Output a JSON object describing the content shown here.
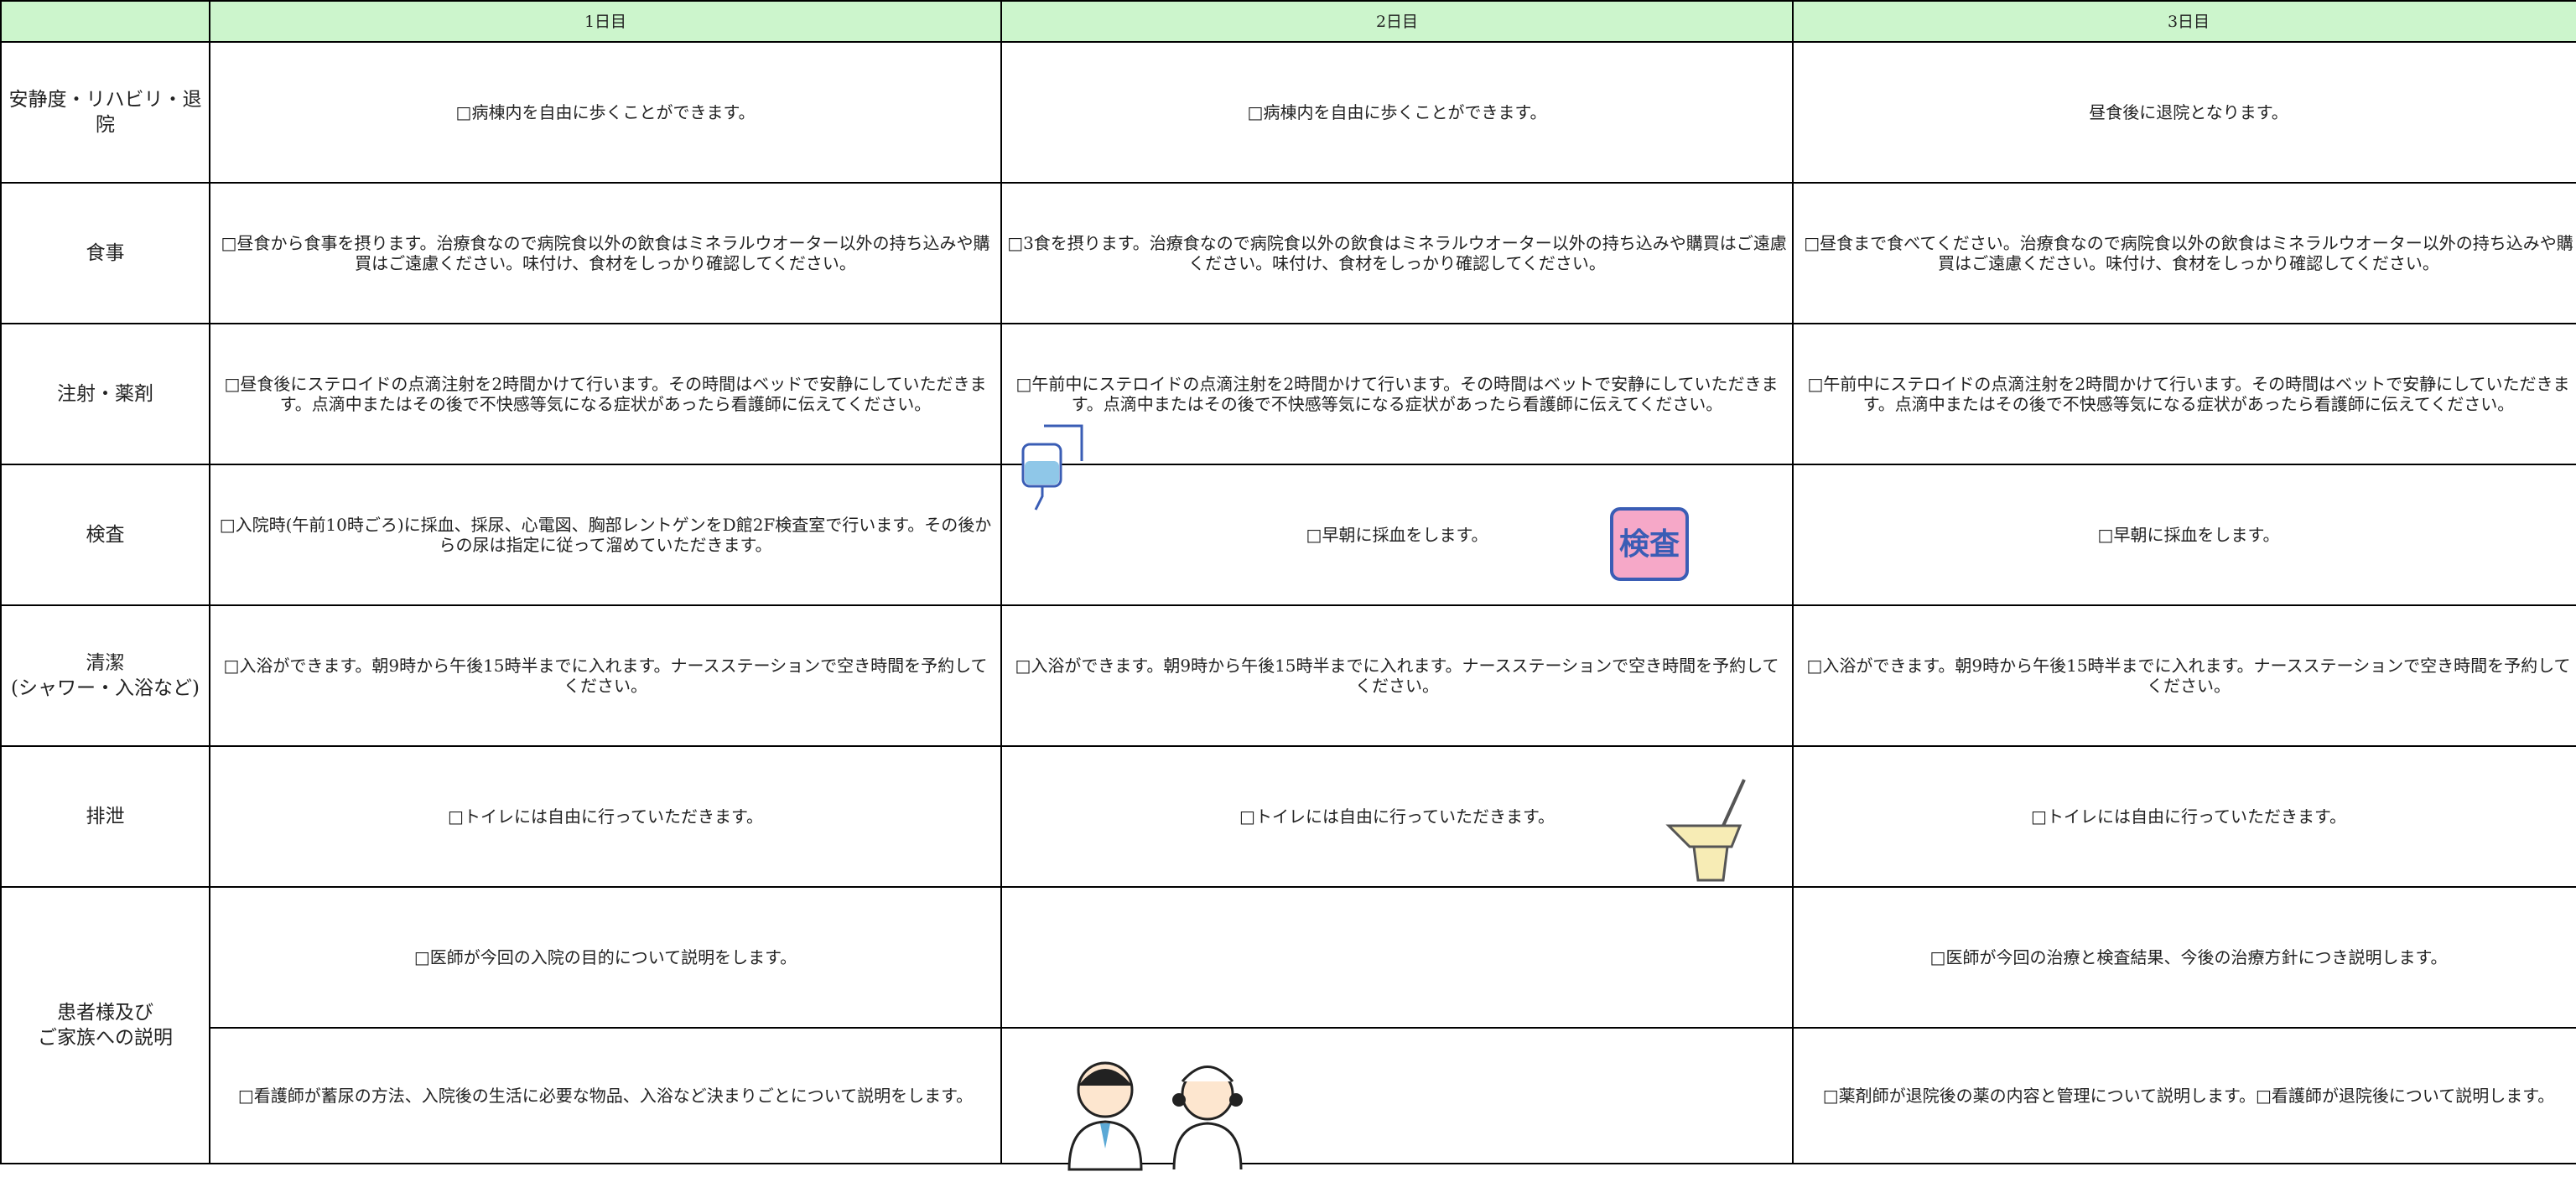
{
  "header": [
    "1日目",
    "2日目",
    "3日目"
  ],
  "rows": [
    {
      "label": "安静度・リハビリ・退院",
      "cells": [
        "□病棟内を自由に歩くことができます。",
        "□病棟内を自由に歩くことができます。",
        "昼食後に退院となります。"
      ]
    },
    {
      "label": "食事",
      "cells": [
        "□昼食から食事を摂ります。治療食なので病院食以外の飲食はミネラルウオーター以外の持ち込みや購買はご遠慮ください。味付け、食材をしっかり確認してください。",
        "□3食を摂ります。治療食なので病院食以外の飲食はミネラルウオーター以外の持ち込みや購買はご遠慮ください。味付け、食材をしっかり確認してください。",
        "□昼食まで食べてください。治療食なので病院食以外の飲食はミネラルウオーター以外の持ち込みや購買はご遠慮ください。味付け、食材をしっかり確認してください。"
      ]
    },
    {
      "label": "注射・薬剤",
      "cells": [
        "□昼食後にステロイドの点滴注射を2時間かけて行います。その時間はベッドで安静にしていただきます。点滴中またはその後で不快感等気になる症状があったら看護師に伝えてください。",
        "□午前中にステロイドの点滴注射を2時間かけて行います。その時間はベットで安静にしていただきます。点滴中またはその後で不快感等気になる症状があったら看護師に伝えてください。",
        "□午前中にステロイドの点滴注射を2時間かけて行います。その時間はベットで安静にしていただきます。点滴中またはその後で不快感等気になる症状があったら看護師に伝えてください。"
      ]
    },
    {
      "label": "検査",
      "cells": [
        "□入院時(午前10時ごろ)に採血、採尿、心電図、胸部レントゲンをD館2F検査室で行います。その後からの尿は指定に従って溜めていただきます。",
        "□早朝に採血をします。",
        "□早朝に採血をします。"
      ]
    },
    {
      "label": "清潔\n(シャワー・入浴など)",
      "cells": [
        "□入浴ができます。朝9時から午後15時半までに入れます。ナースステーションで空き時間を予約してください。",
        "□入浴ができます。朝9時から午後15時半までに入れます。ナースステーションで空き時間を予約してください。",
        "□入浴ができます。朝9時から午後15時半までに入れます。ナースステーションで空き時間を予約してください。"
      ]
    },
    {
      "label": "排泄",
      "cells": [
        "□トイレには自由に行っていただきます。",
        "□トイレには自由に行っていただきます。",
        "□トイレには自由に行っていただきます。"
      ]
    }
  ],
  "explanation": {
    "label": "患者様及び\nご家族への説明",
    "rows": [
      [
        "□医師が今回の入院の目的について説明をします。",
        null,
        "□医師が今回の治療と検査結果、今後の治療方針につき説明します。"
      ],
      [
        "□看護師が蓄尿の方法、入院後の生活に必要な物品、入浴など決まりごとについて説明をします。",
        null,
        "□薬剤師が退院後の薬の内容と管理について説明します。□看護師が退院後について説明します。"
      ]
    ]
  },
  "icons": {
    "exam_stamp": "検査"
  }
}
